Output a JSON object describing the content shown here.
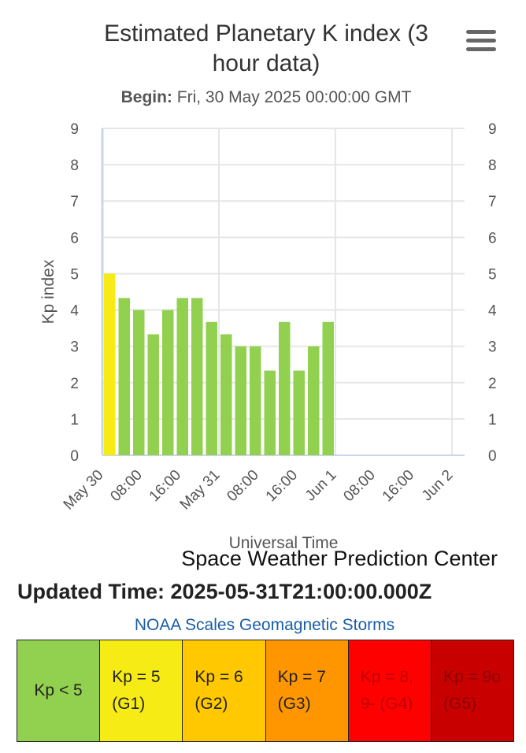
{
  "header": {
    "title": "Estimated Planetary K index (3 hour data)",
    "begin_label": "Begin:",
    "begin_value": "Fri, 30 May 2025 00:00:00 GMT"
  },
  "menu": {
    "icon": "hamburger-menu-icon"
  },
  "chart_data": {
    "type": "bar",
    "title": "Estimated Planetary K index (3 hour data)",
    "xlabel": "Universal Time",
    "ylabel": "Kp index",
    "ylim": [
      0,
      9
    ],
    "yticks": [
      "0",
      "1",
      "2",
      "3",
      "4",
      "5",
      "6",
      "7",
      "8",
      "9"
    ],
    "xticks": [
      "May 30",
      "08:00",
      "16:00",
      "May 31",
      "08:00",
      "16:00",
      "Jun 1",
      "08:00",
      "16:00",
      "Jun 2"
    ],
    "xrange_hours": [
      0,
      72
    ],
    "bar_interval_hours": 3,
    "grid": true,
    "categories": [
      "May 30 00:00",
      "May 30 03:00",
      "May 30 06:00",
      "May 30 09:00",
      "May 30 12:00",
      "May 30 15:00",
      "May 30 18:00",
      "May 30 21:00",
      "May 31 00:00",
      "May 31 03:00",
      "May 31 06:00",
      "May 31 09:00",
      "May 31 12:00",
      "May 31 15:00",
      "May 31 18:00",
      "May 31 21:00"
    ],
    "values": [
      5.0,
      4.33,
      4.0,
      3.33,
      4.0,
      4.33,
      4.33,
      3.67,
      3.33,
      3.0,
      3.0,
      2.33,
      3.67,
      2.33,
      3.0,
      3.67
    ],
    "colors": {
      "below_5": "#92d050",
      "g1": "#f6eb14"
    }
  },
  "footer": {
    "credits": "Space Weather Prediction Center",
    "updated": "Updated Time: 2025-05-31T21:00:00.000Z",
    "scales_link": "NOAA Scales Geomagnetic Storms"
  },
  "scales": [
    {
      "label": "Kp < 5",
      "bg": "#92d050",
      "color": "#222222"
    },
    {
      "label": "Kp = 5 (G1)",
      "bg": "#f6eb14",
      "color": "#222222"
    },
    {
      "label": "Kp = 6 (G2)",
      "bg": "#ffc800",
      "color": "#222222"
    },
    {
      "label": "Kp = 7 (G3)",
      "bg": "#ff9600",
      "color": "#222222"
    },
    {
      "label": "Kp = 8, 9- (G4)",
      "bg": "#ff0000",
      "color": "#c00000"
    },
    {
      "label": "Kp = 9o (G5)",
      "bg": "#c80000",
      "color": "#8c0000"
    }
  ]
}
